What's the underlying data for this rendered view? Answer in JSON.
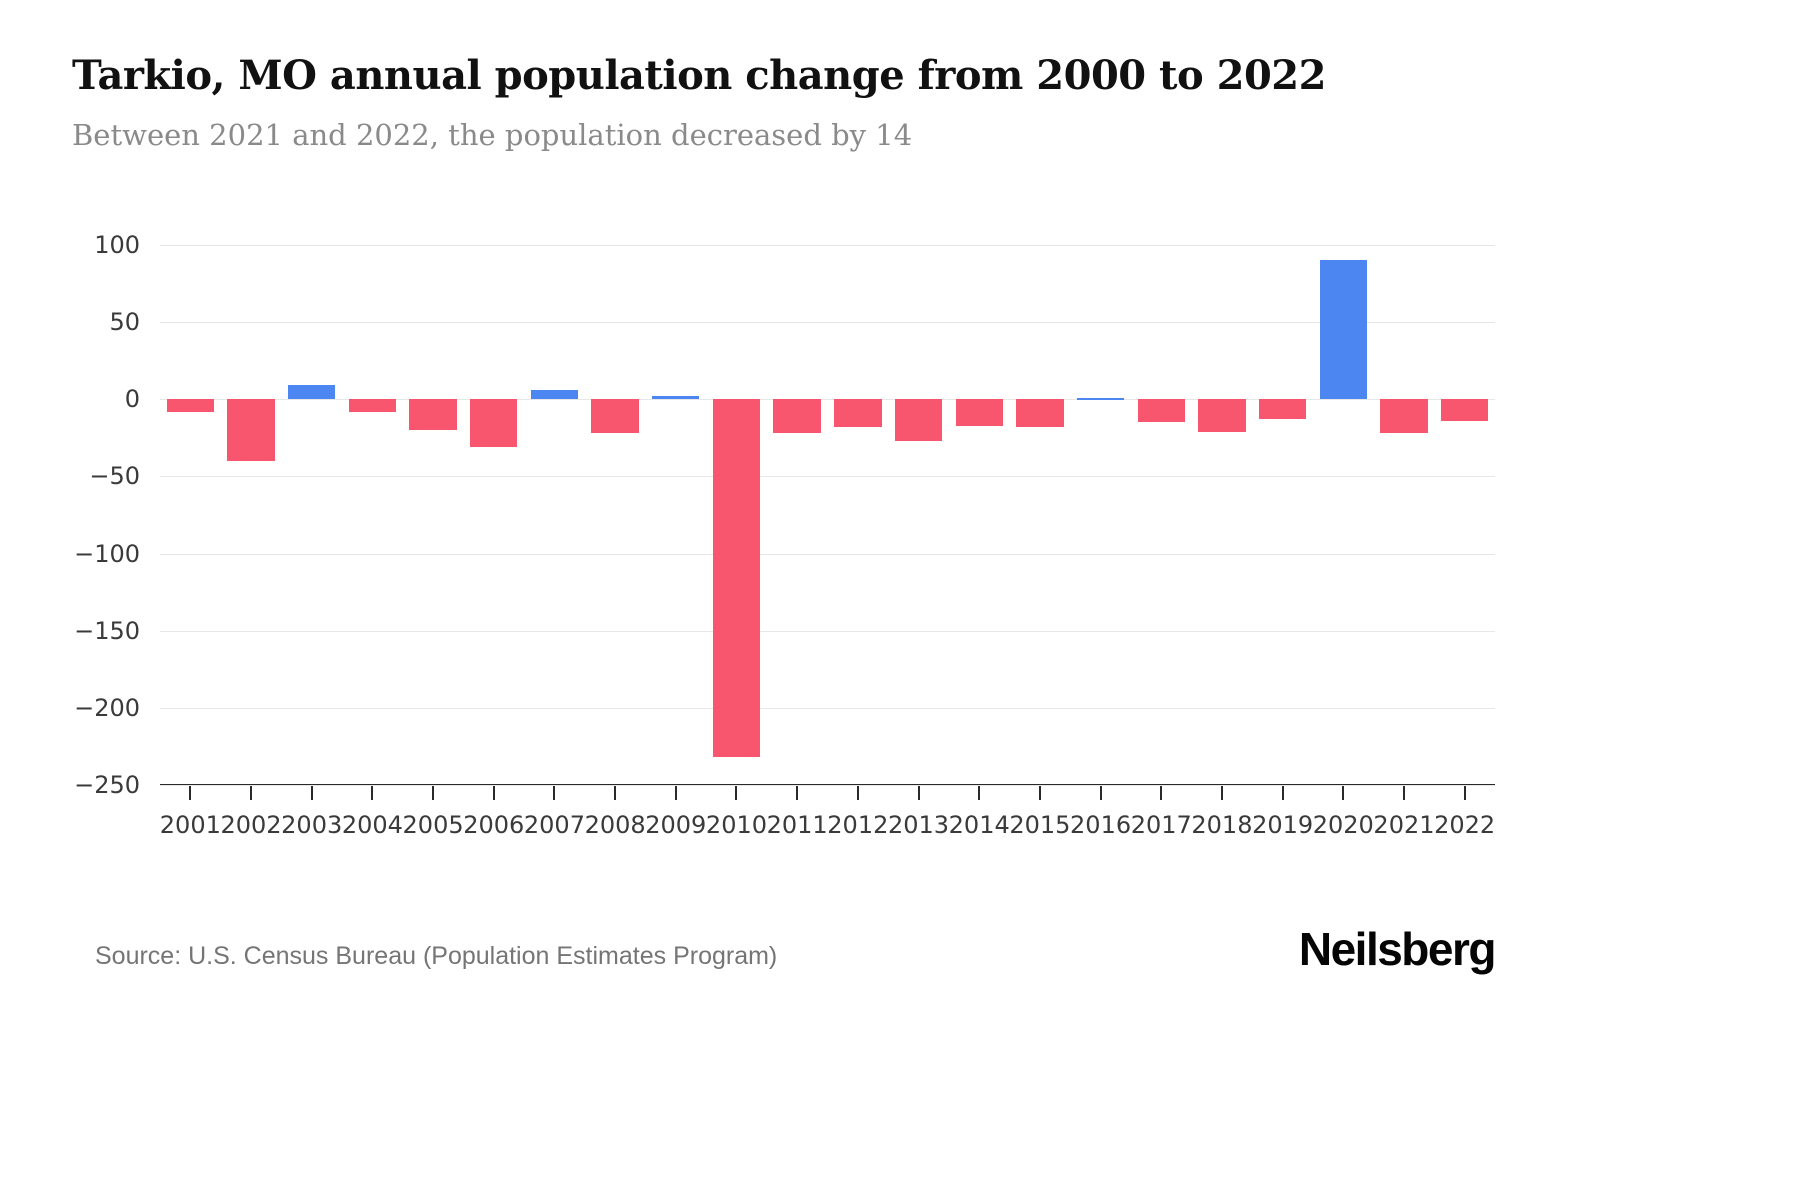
{
  "header": {
    "title": "Tarkio, MO annual population change from 2000 to 2022",
    "subtitle": "Between 2021 and 2022, the population decreased by 14"
  },
  "footer": {
    "source": "Source: U.S. Census Bureau (Population Estimates Program)",
    "brand": "Neilsberg"
  },
  "chart_data": {
    "type": "bar",
    "title": "Tarkio, MO annual population change from 2000 to 2022",
    "subtitle": "Between 2021 and 2022, the population decreased by 14",
    "categories": [
      "2001",
      "2002",
      "2003",
      "2004",
      "2005",
      "2006",
      "2007",
      "2008",
      "2009",
      "2010",
      "2011",
      "2012",
      "2013",
      "2014",
      "2015",
      "2016",
      "2017",
      "2018",
      "2019",
      "2020",
      "2021",
      "2022"
    ],
    "values": [
      -8,
      -40,
      9,
      -8,
      -20,
      -31,
      6,
      -22,
      2,
      -232,
      -22,
      -18,
      -27,
      -17,
      -18,
      1,
      -15,
      -21,
      -13,
      90,
      -22,
      -14
    ],
    "xlabel": "",
    "ylabel": "",
    "ylim": [
      -250,
      100
    ],
    "yticks": [
      100,
      50,
      0,
      -50,
      -100,
      -150,
      -200,
      -250
    ],
    "ytick_labels": [
      "100",
      "50",
      "0",
      "−50",
      "−100",
      "−150",
      "−200",
      "−250"
    ],
    "positive_color": "#4c86f0",
    "negative_color": "#f8566e",
    "grid": "horizontal",
    "legend": "none"
  }
}
